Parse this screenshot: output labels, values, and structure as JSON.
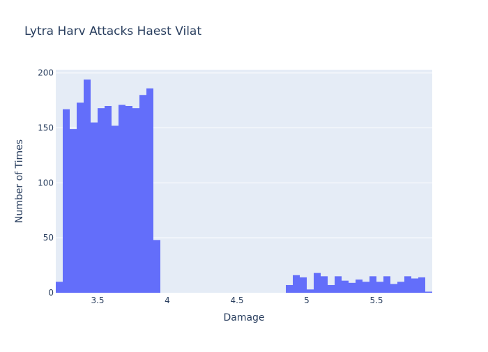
{
  "chart_data": {
    "type": "bar",
    "title": "Lytra Harv Attacks Haest Vilat",
    "xlabel": "Damage",
    "ylabel": "Number of Times",
    "xlim": [
      3.2,
      5.9
    ],
    "ylim": [
      0,
      203
    ],
    "bin_width": 0.05,
    "x_ticks": [
      3.5,
      4,
      4.5,
      5,
      5.5
    ],
    "x_tick_labels": [
      "3.5",
      "4",
      "4.5",
      "5",
      "5.5"
    ],
    "y_ticks": [
      0,
      50,
      100,
      150,
      200
    ],
    "y_tick_labels": [
      "0",
      "50",
      "100",
      "150",
      "200"
    ],
    "bin_starts": [
      3.2,
      3.25,
      3.3,
      3.35,
      3.4,
      3.45,
      3.5,
      3.55,
      3.6,
      3.65,
      3.7,
      3.75,
      3.8,
      3.85,
      3.9,
      3.95,
      4.0,
      4.05,
      4.1,
      4.15,
      4.2,
      4.25,
      4.3,
      4.35,
      4.4,
      4.45,
      4.5,
      4.55,
      4.6,
      4.65,
      4.7,
      4.75,
      4.8,
      4.85,
      4.9,
      4.95,
      5.0,
      5.05,
      5.1,
      5.15,
      5.2,
      5.25,
      5.3,
      5.35,
      5.4,
      5.45,
      5.5,
      5.55,
      5.6,
      5.65,
      5.7,
      5.75,
      5.8,
      5.85
    ],
    "values": [
      10,
      167,
      149,
      173,
      194,
      155,
      168,
      170,
      152,
      171,
      170,
      168,
      180,
      186,
      48,
      0,
      0,
      0,
      0,
      0,
      0,
      0,
      0,
      0,
      0,
      0,
      0,
      0,
      0,
      0,
      0,
      0,
      0,
      7,
      16,
      14,
      3,
      18,
      15,
      7,
      15,
      11,
      9,
      12,
      10,
      15,
      10,
      15,
      8,
      10,
      15,
      13,
      14,
      1
    ],
    "bar_color": "#636efa",
    "plot_bg": "#e5ecf6",
    "grid": true
  }
}
